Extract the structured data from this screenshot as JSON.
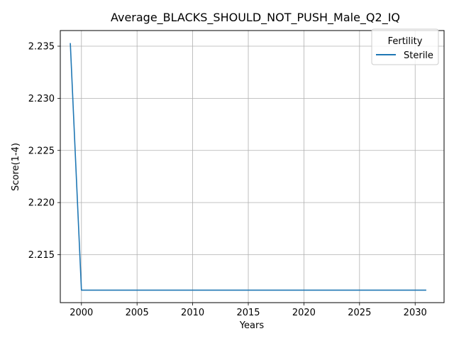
{
  "chart_data": {
    "type": "line",
    "title": "Average_BLACKS_SHOULD_NOT_PUSH_Male_Q2_IQ",
    "xlabel": "Years",
    "ylabel": "Score(1-4)",
    "xlim": [
      1998.1,
      2032.6
    ],
    "ylim": [
      2.2104,
      2.2365
    ],
    "xticks": [
      2000,
      2005,
      2010,
      2015,
      2020,
      2025,
      2030
    ],
    "xtick_labels": [
      "2000",
      "2005",
      "2010",
      "2015",
      "2020",
      "2025",
      "2030"
    ],
    "yticks": [
      2.215,
      2.22,
      2.225,
      2.23,
      2.235
    ],
    "ytick_labels": [
      "2.215",
      "2.220",
      "2.225",
      "2.230",
      "2.235"
    ],
    "grid": true,
    "legend": {
      "title": "Fertility",
      "placement": "top-right"
    },
    "series": [
      {
        "name": "Sterile",
        "color": "#1f77b4",
        "x": [
          1999,
          2000,
          2001,
          2002,
          2003,
          2004,
          2005,
          2006,
          2007,
          2008,
          2009,
          2010,
          2011,
          2012,
          2013,
          2014,
          2015,
          2016,
          2017,
          2018,
          2019,
          2020,
          2021,
          2022,
          2023,
          2024,
          2025,
          2026,
          2027,
          2028,
          2029,
          2030,
          2031
        ],
        "y": [
          2.2353,
          2.2116,
          2.2116,
          2.2116,
          2.2116,
          2.2116,
          2.2116,
          2.2116,
          2.2116,
          2.2116,
          2.2116,
          2.2116,
          2.2116,
          2.2116,
          2.2116,
          2.2116,
          2.2116,
          2.2116,
          2.2116,
          2.2116,
          2.2116,
          2.2116,
          2.2116,
          2.2116,
          2.2116,
          2.2116,
          2.2116,
          2.2116,
          2.2116,
          2.2116,
          2.2116,
          2.2116,
          2.2116
        ]
      }
    ]
  }
}
